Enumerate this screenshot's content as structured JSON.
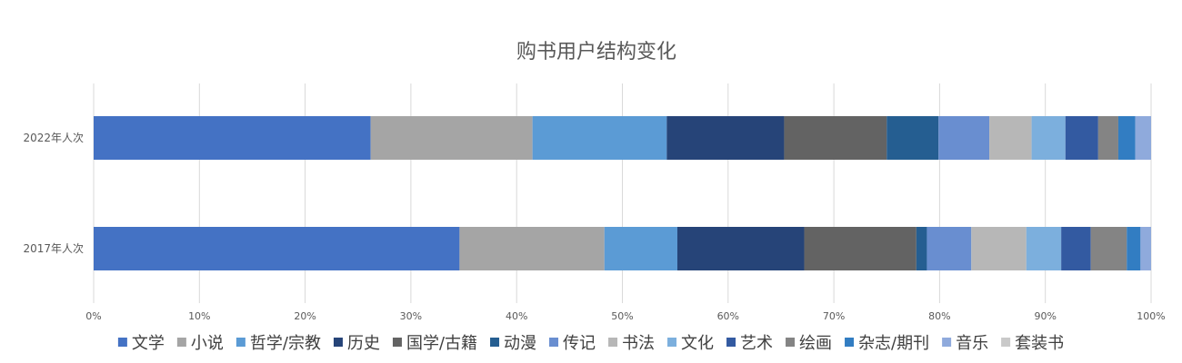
{
  "chart_data": {
    "type": "bar",
    "orientation": "horizontal",
    "stacked": "percent",
    "title": "购书用户结构变化",
    "categories": [
      "2022年人次",
      "2017年人次"
    ],
    "xlim": [
      0,
      100
    ],
    "xticks": [
      "0%",
      "10%",
      "20%",
      "30%",
      "40%",
      "50%",
      "60%",
      "70%",
      "80%",
      "90%",
      "100%"
    ],
    "grid": true,
    "legend_position": "bottom",
    "series": [
      {
        "name": "文学",
        "color": "#4472c4",
        "values": [
          26.2,
          34.6
        ]
      },
      {
        "name": "小说",
        "color": "#a5a5a5",
        "values": [
          15.3,
          13.7
        ]
      },
      {
        "name": "哲学/宗教",
        "color": "#5b9bd5",
        "values": [
          12.7,
          6.9
        ]
      },
      {
        "name": "历史",
        "color": "#264478",
        "values": [
          11.1,
          12.0
        ]
      },
      {
        "name": "国学/古籍",
        "color": "#636363",
        "values": [
          9.7,
          10.6
        ]
      },
      {
        "name": "动漫",
        "color": "#255e91",
        "values": [
          4.9,
          1.0
        ]
      },
      {
        "name": "传记",
        "color": "#698ed0",
        "values": [
          4.8,
          4.2
        ]
      },
      {
        "name": "书法",
        "color": "#b7b7b7",
        "values": [
          4.0,
          5.2
        ]
      },
      {
        "name": "文化",
        "color": "#7cafdd",
        "values": [
          3.2,
          3.3
        ]
      },
      {
        "name": "艺术",
        "color": "#335aa1",
        "values": [
          3.1,
          2.8
        ]
      },
      {
        "name": "绘画",
        "color": "#848484",
        "values": [
          1.9,
          3.4
        ]
      },
      {
        "name": "杂志/期刊",
        "color": "#327dc2",
        "values": [
          1.6,
          1.3
        ]
      },
      {
        "name": "音乐",
        "color": "#8faadc",
        "values": [
          1.5,
          1.0
        ]
      },
      {
        "name": "套装书",
        "color": "#c9c9c9",
        "values": [
          0.0,
          0.0
        ]
      }
    ]
  }
}
